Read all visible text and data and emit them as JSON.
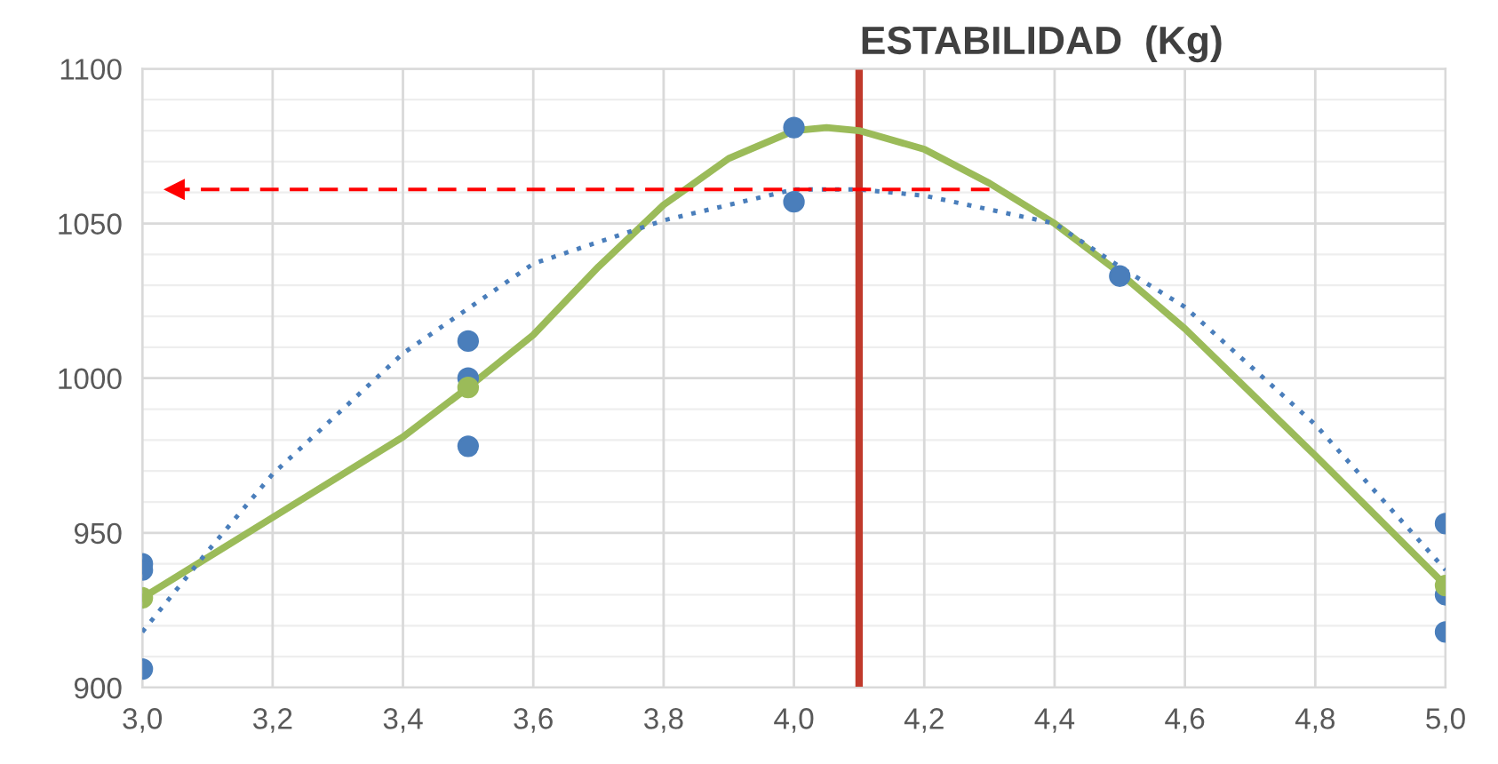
{
  "chart_data": {
    "type": "scatter",
    "title": "ESTABILIDAD  (Kg)",
    "series": [
      {
        "type": "scatter",
        "color": "#4a7ebb",
        "marker": "circle",
        "x": [
          3.0,
          3.0,
          3.0,
          3.5,
          3.5,
          3.5,
          4.0,
          4.0,
          4.5,
          5.0,
          5.0,
          5.0
        ],
        "values": [
          940,
          938,
          906,
          1012,
          1000,
          978,
          1081,
          1057,
          1033,
          953,
          930,
          918
        ]
      },
      {
        "type": "line",
        "color": "#9bbb59",
        "marker": "none",
        "line_style": "solid",
        "x": [
          3.0,
          3.2,
          3.4,
          3.5,
          3.6,
          3.7,
          3.8,
          3.9,
          4.0,
          4.05,
          4.1,
          4.2,
          4.3,
          4.4,
          4.5,
          4.6,
          4.8,
          5.0
        ],
        "values": [
          929,
          955,
          981,
          997,
          1014,
          1036,
          1056,
          1071,
          1080,
          1081,
          1080,
          1074,
          1063,
          1050,
          1034,
          1016,
          975,
          933
        ]
      },
      {
        "type": "scatter",
        "color": "#9bbb59",
        "marker": "circle",
        "x": [
          3.0,
          3.5,
          5.0
        ],
        "values": [
          929,
          997,
          933
        ]
      },
      {
        "type": "line",
        "color": "#4a7ebb",
        "marker": "none",
        "line_style": "dotted",
        "x": [
          3.0,
          3.1,
          3.2,
          3.4,
          3.6,
          3.8,
          4.0,
          4.1,
          4.2,
          4.4,
          4.5,
          4.6,
          4.8,
          5.0
        ],
        "values": [
          918,
          944,
          969,
          1008,
          1037,
          1051,
          1061,
          1061,
          1059,
          1050,
          1036,
          1023,
          985,
          938
        ]
      },
      {
        "type": "line",
        "color": "#ff0000",
        "marker": "triangle",
        "line_style": "dashed",
        "x": [
          4.3,
          3.05
        ],
        "values": [
          1061,
          1061
        ]
      }
    ],
    "ref_lines": [
      {
        "axis": "x",
        "value": 4.1,
        "color": "#c0392b",
        "line_style": "solid"
      }
    ],
    "xlim": [
      3.0,
      5.0
    ],
    "xticks": [
      {
        "value": 3.0,
        "label": "3,0"
      },
      {
        "value": 3.2,
        "label": "3,2"
      },
      {
        "value": 3.4,
        "label": "3,4"
      },
      {
        "value": 3.6,
        "label": "3,6"
      },
      {
        "value": 3.8,
        "label": "3,8"
      },
      {
        "value": 4.0,
        "label": "4,0"
      },
      {
        "value": 4.2,
        "label": "4,2"
      },
      {
        "value": 4.4,
        "label": "4,4"
      },
      {
        "value": 4.6,
        "label": "4,6"
      },
      {
        "value": 4.8,
        "label": "4,8"
      },
      {
        "value": 5.0,
        "label": "5,0"
      }
    ],
    "ylim": [
      900,
      1100
    ],
    "yticks": [
      900,
      950,
      1000,
      1050,
      1100
    ],
    "grid": true,
    "legend": false
  }
}
